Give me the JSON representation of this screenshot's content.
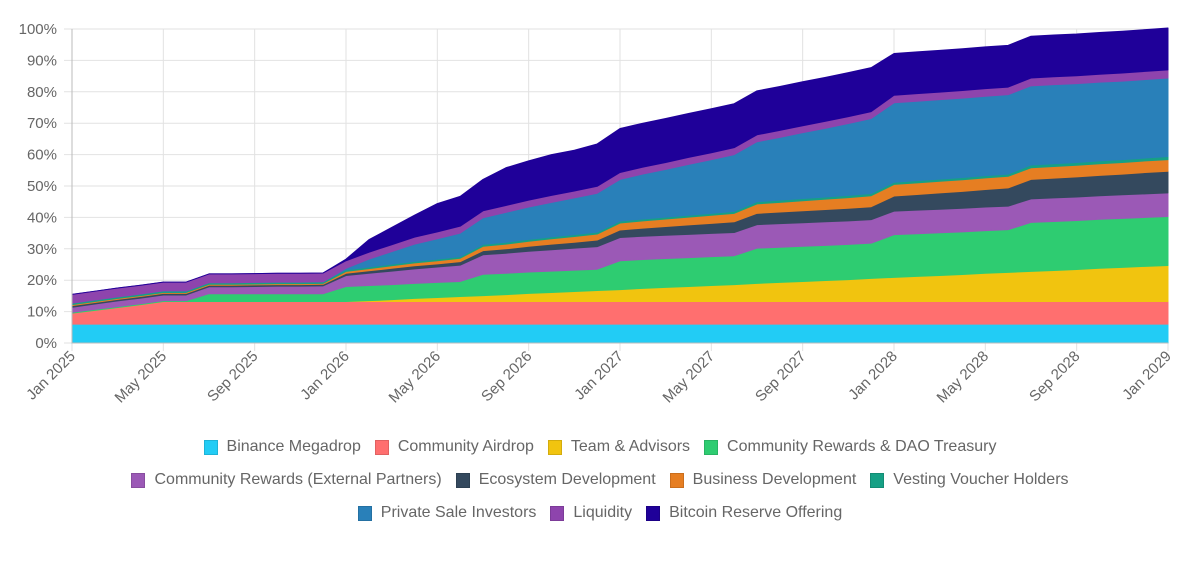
{
  "chart_data": {
    "type": "area",
    "stacked": true,
    "x": [
      "Jan 2025",
      "Feb 2025",
      "Mar 2025",
      "Apr 2025",
      "May 2025",
      "Jun 2025",
      "Jul 2025",
      "Aug 2025",
      "Sep 2025",
      "Oct 2025",
      "Nov 2025",
      "Dec 2025",
      "Jan 2026",
      "Feb 2026",
      "Mar 2026",
      "Apr 2026",
      "May 2026",
      "Jun 2026",
      "Jul 2026",
      "Aug 2026",
      "Sep 2026",
      "Oct 2026",
      "Nov 2026",
      "Dec 2026",
      "Jan 2027",
      "Feb 2027",
      "Mar 2027",
      "Apr 2027",
      "May 2027",
      "Jun 2027",
      "Jul 2027",
      "Aug 2027",
      "Sep 2027",
      "Oct 2027",
      "Nov 2027",
      "Dec 2027",
      "Jan 2028",
      "Feb 2028",
      "Mar 2028",
      "Apr 2028",
      "May 2028",
      "Jun 2028",
      "Jul 2028",
      "Aug 2028",
      "Sep 2028",
      "Oct 2028",
      "Nov 2028",
      "Dec 2028",
      "Jan 2029"
    ],
    "x_tick_labels": [
      "Jan 2025",
      "May 2025",
      "Sep 2025",
      "Jan 2026",
      "May 2026",
      "Sep 2026",
      "Jan 2027",
      "May 2027",
      "Sep 2027",
      "Jan 2028",
      "May 2028",
      "Sep 2028",
      "Jan 2029"
    ],
    "y_tick_labels": [
      "0%",
      "10%",
      "20%",
      "30%",
      "40%",
      "50%",
      "60%",
      "70%",
      "80%",
      "90%",
      "100%"
    ],
    "ylim": [
      0,
      100
    ],
    "grid": true,
    "legend_position": "bottom",
    "series": [
      {
        "name": "Binance Megadrop",
        "color": "#22ccf5",
        "values": [
          6,
          6,
          6,
          6,
          6,
          6,
          6,
          6,
          6,
          6,
          6,
          6,
          6,
          6,
          6,
          6,
          6,
          6,
          6,
          6,
          6,
          6,
          6,
          6,
          6,
          6,
          6,
          6,
          6,
          6,
          6,
          6,
          6,
          6,
          6,
          6,
          6,
          6,
          6,
          6,
          6,
          6,
          6,
          6,
          6,
          6,
          6,
          6,
          6
        ]
      },
      {
        "name": "Community Airdrop",
        "color": "#ff6f6f",
        "values": [
          3.5,
          4.4,
          5.3,
          6.2,
          7.2,
          7.2,
          7.2,
          7.2,
          7.2,
          7.2,
          7.2,
          7.2,
          7.2,
          7.2,
          7.2,
          7.2,
          7.2,
          7.2,
          7.2,
          7.2,
          7.2,
          7.2,
          7.2,
          7.2,
          7.2,
          7.2,
          7.2,
          7.2,
          7.2,
          7.2,
          7.2,
          7.2,
          7.2,
          7.2,
          7.2,
          7.2,
          7.2,
          7.2,
          7.2,
          7.2,
          7.2,
          7.2,
          7.2,
          7.2,
          7.2,
          7.2,
          7.2,
          7.2,
          7.2
        ]
      },
      {
        "name": "Team & Advisors",
        "color": "#f1c40f",
        "values": [
          0,
          0,
          0,
          0,
          0,
          0,
          0,
          0,
          0,
          0,
          0,
          0,
          0,
          0.3,
          0.6,
          1.0,
          1.3,
          1.6,
          1.9,
          2.2,
          2.6,
          2.9,
          3.2,
          3.5,
          3.8,
          4.2,
          4.5,
          4.8,
          5.1,
          5.4,
          5.8,
          6.1,
          6.4,
          6.7,
          7.0,
          7.4,
          7.7,
          8.0,
          8.3,
          8.6,
          9.0,
          9.3,
          9.6,
          9.9,
          10.2,
          10.6,
          10.9,
          11.2,
          11.5
        ]
      },
      {
        "name": "Community Rewards & DAO Treasury",
        "color": "#2ecc71",
        "values": [
          0.3,
          0.3,
          0.3,
          0.3,
          0.3,
          0.3,
          2.5,
          2.5,
          2.5,
          2.5,
          2.5,
          2.5,
          4.8,
          4.8,
          4.8,
          4.8,
          4.8,
          4.8,
          6.8,
          6.8,
          6.8,
          6.8,
          6.8,
          6.8,
          9.2,
          9.2,
          9.2,
          9.2,
          9.2,
          9.2,
          11.2,
          11.2,
          11.2,
          11.2,
          11.2,
          11.2,
          13.6,
          13.6,
          13.6,
          13.6,
          13.6,
          13.6,
          15.6,
          15.6,
          15.6,
          15.6,
          15.6,
          15.6,
          15.6
        ]
      },
      {
        "name": "Community Rewards (External Partners)",
        "color": "#9b59b6",
        "values": [
          1.6,
          1.7,
          1.8,
          1.8,
          1.8,
          1.8,
          2.2,
          2.2,
          2.3,
          2.4,
          2.4,
          2.5,
          3.5,
          3.9,
          4.3,
          4.6,
          4.9,
          5.2,
          6.2,
          6.4,
          6.6,
          6.8,
          7.0,
          7.2,
          7.4,
          7.4,
          7.4,
          7.4,
          7.4,
          7.4,
          7.5,
          7.5,
          7.5,
          7.5,
          7.5,
          7.5,
          7.5,
          7.5,
          7.5,
          7.5,
          7.5,
          7.5,
          7.5,
          7.5,
          7.5,
          7.5,
          7.5,
          7.5,
          7.5
        ]
      },
      {
        "name": "Ecosystem Development",
        "color": "#34495e",
        "values": [
          0.5,
          0.5,
          0.5,
          0.5,
          0.5,
          0.5,
          0.5,
          0.5,
          0.5,
          0.5,
          0.5,
          0.5,
          0.7,
          0.8,
          0.9,
          1.0,
          1.0,
          1.1,
          1.3,
          1.4,
          1.6,
          1.8,
          1.9,
          2.1,
          2.4,
          2.6,
          2.8,
          3.0,
          3.2,
          3.4,
          3.6,
          3.7,
          3.8,
          3.9,
          4.0,
          4.1,
          4.8,
          5.0,
          5.2,
          5.4,
          5.6,
          5.8,
          6.2,
          6.3,
          6.4,
          6.5,
          6.6,
          6.8,
          6.9
        ]
      },
      {
        "name": "Business Development",
        "color": "#e67e22",
        "values": [
          0.3,
          0.3,
          0.3,
          0.3,
          0.3,
          0.3,
          0.3,
          0.3,
          0.3,
          0.3,
          0.3,
          0.3,
          0.6,
          0.7,
          0.8,
          0.9,
          1.0,
          1.1,
          1.4,
          1.5,
          1.6,
          1.7,
          1.8,
          1.9,
          2.2,
          2.3,
          2.4,
          2.5,
          2.6,
          2.7,
          3.0,
          3.1,
          3.2,
          3.3,
          3.4,
          3.5,
          3.7,
          3.7,
          3.7,
          3.7,
          3.7,
          3.7,
          3.7,
          3.7,
          3.7,
          3.7,
          3.7,
          3.7,
          3.7
        ]
      },
      {
        "name": "Vesting Voucher Holders",
        "color": "#16a085",
        "values": [
          0.5,
          0.5,
          0.5,
          0.5,
          0.5,
          0.5,
          0.5,
          0.5,
          0.5,
          0.5,
          0.5,
          0.5,
          0.5,
          0.5,
          0.5,
          0.5,
          0.5,
          0.5,
          0.6,
          0.6,
          0.6,
          0.6,
          0.6,
          0.6,
          0.6,
          0.6,
          0.6,
          0.6,
          0.6,
          0.6,
          0.7,
          0.7,
          0.7,
          0.7,
          0.7,
          0.7,
          0.7,
          0.7,
          0.7,
          0.7,
          0.7,
          0.7,
          0.9,
          0.9,
          0.9,
          0.9,
          0.9,
          0.9,
          1.0
        ]
      },
      {
        "name": "Private Sale Investors",
        "color": "#2980b9",
        "values": [
          0,
          0,
          0,
          0,
          0,
          0,
          0,
          0,
          0,
          0,
          0,
          0,
          0.5,
          2.5,
          4.0,
          5.5,
          6.5,
          7.5,
          8.5,
          9.5,
          10.3,
          11.0,
          11.7,
          12.4,
          13.3,
          14.3,
          15.2,
          16.2,
          17.1,
          18.1,
          19.1,
          20.0,
          21.0,
          21.9,
          22.9,
          23.9,
          25.3,
          25.3,
          25.3,
          25.3,
          25.3,
          25.3,
          25.2,
          25.2,
          25.1,
          25.1,
          25.0,
          25.0,
          25.0
        ]
      },
      {
        "name": "Liquidity",
        "color": "#8e44ad",
        "values": [
          2.8,
          2.8,
          2.8,
          2.8,
          2.8,
          2.8,
          2.8,
          2.8,
          2.8,
          2.8,
          2.8,
          2.8,
          2.4,
          2.2,
          2.2,
          2.2,
          2.2,
          2.2,
          2.2,
          2.2,
          2.2,
          2.2,
          2.2,
          2.2,
          2.2,
          2.2,
          2.2,
          2.2,
          2.2,
          2.2,
          2.2,
          2.2,
          2.2,
          2.2,
          2.2,
          2.2,
          2.4,
          2.4,
          2.4,
          2.4,
          2.4,
          2.4,
          2.5,
          2.5,
          2.5,
          2.5,
          2.6,
          2.6,
          2.6
        ]
      },
      {
        "name": "Bitcoin Reserve Offering",
        "color": "#1f0099",
        "values": [
          0,
          0,
          0,
          0,
          0,
          0,
          0,
          0,
          0,
          0,
          0,
          0,
          0.5,
          4,
          5.5,
          7,
          9,
          9.5,
          10,
          12,
          12.5,
          13,
          13,
          13.5,
          14,
          14,
          14,
          14,
          14,
          14,
          14,
          14,
          14,
          14,
          14,
          14,
          13.3,
          13.3,
          13.3,
          13.3,
          13.3,
          13.3,
          13.3,
          13.3,
          13.3,
          13.3,
          13.3,
          13.3,
          13.3
        ]
      }
    ]
  }
}
